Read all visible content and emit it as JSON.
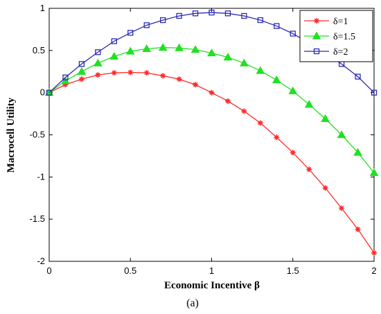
{
  "chart_data": {
    "type": "line",
    "title": "",
    "xlabel": "Economic Incentive β",
    "ylabel": "Macrocell Utility",
    "caption": "(a)",
    "xlim": [
      0,
      2
    ],
    "ylim": [
      -2,
      1
    ],
    "x_ticks": [
      0,
      0.5,
      1,
      1.5,
      2
    ],
    "x_tick_labels": [
      "0",
      "0.5",
      "1",
      "1.5",
      "2"
    ],
    "y_ticks": [
      -2,
      -1.5,
      -1,
      -0.5,
      0,
      0.5,
      1
    ],
    "y_tick_labels": [
      "-2",
      "-1.5",
      "-1",
      "-0.5",
      "0",
      "0.5",
      "1"
    ],
    "grid": false,
    "legend_position": "top-right",
    "x": [
      0,
      0.1,
      0.2,
      0.3,
      0.4,
      0.5,
      0.6,
      0.7,
      0.8,
      0.9,
      1.0,
      1.1,
      1.2,
      1.3,
      1.4,
      1.5,
      1.6,
      1.7,
      1.8,
      1.9,
      2.0
    ],
    "series": [
      {
        "name": "δ=1",
        "color": "#ff2a2a",
        "marker": "star",
        "values": [
          0,
          0.095,
          0.16,
          0.21,
          0.235,
          0.24,
          0.235,
          0.2,
          0.16,
          0.095,
          0,
          -0.1,
          -0.22,
          -0.36,
          -0.53,
          -0.71,
          -0.91,
          -1.13,
          -1.37,
          -1.62,
          -1.9
        ]
      },
      {
        "name": "δ=1.5",
        "color": "#22e022",
        "marker": "triangle",
        "values": [
          0,
          0.14,
          0.25,
          0.35,
          0.43,
          0.49,
          0.52,
          0.535,
          0.53,
          0.51,
          0.47,
          0.42,
          0.35,
          0.26,
          0.15,
          0.02,
          -0.14,
          -0.31,
          -0.5,
          -0.71,
          -0.95
        ]
      },
      {
        "name": "δ=2",
        "color": "#2a2ab8",
        "marker": "square",
        "values": [
          0,
          0.18,
          0.34,
          0.48,
          0.61,
          0.71,
          0.8,
          0.86,
          0.91,
          0.94,
          0.95,
          0.94,
          0.91,
          0.86,
          0.79,
          0.7,
          0.59,
          0.48,
          0.34,
          0.19,
          0
        ]
      }
    ]
  }
}
